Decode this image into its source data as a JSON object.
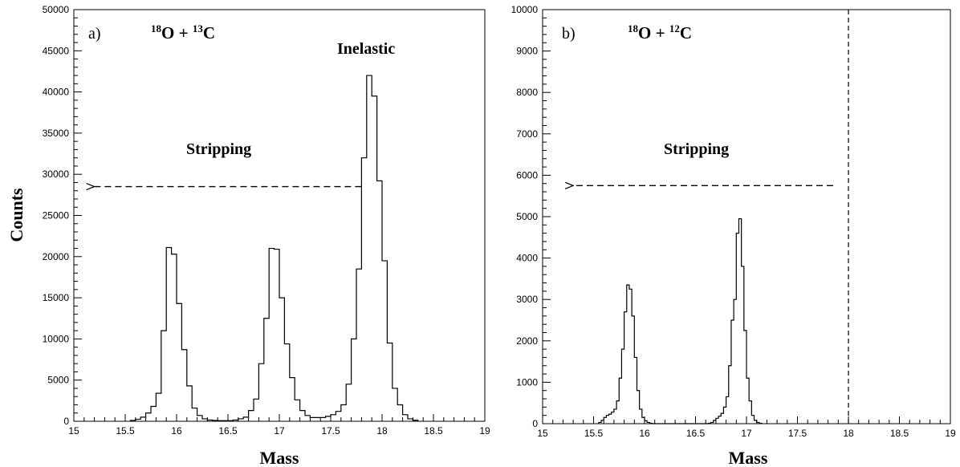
{
  "chart_data": [
    {
      "type": "histogram",
      "panel_label": "a)",
      "reaction": {
        "a_mass": "18",
        "a_sym": "O",
        "plus": " + ",
        "b_mass": "13",
        "b_sym": "C"
      },
      "xlabel": "Mass",
      "ylabel": "Counts",
      "xlim": [
        15,
        19
      ],
      "ylim": [
        0,
        50000
      ],
      "xticks": [
        15,
        15.5,
        16,
        16.5,
        17,
        17.5,
        18,
        18.5,
        19
      ],
      "yticks": [
        0,
        5000,
        10000,
        15000,
        20000,
        25000,
        30000,
        35000,
        40000,
        45000,
        50000
      ],
      "annotations": {
        "stripping": "Stripping",
        "inelastic": "Inelastic"
      },
      "arrow": {
        "from_x": 17.8,
        "to_x": 15.2,
        "y": 28500,
        "style": "dashed"
      },
      "bin_start": 15.55,
      "bin_width": 0.05,
      "counts": [
        100,
        250,
        500,
        1000,
        1800,
        3400,
        11000,
        21100,
        20300,
        14300,
        8700,
        4300,
        1600,
        700,
        300,
        150,
        100,
        80,
        80,
        80,
        150,
        300,
        500,
        1300,
        2700,
        7000,
        12500,
        21000,
        20900,
        15000,
        9400,
        5300,
        2600,
        1300,
        700,
        450,
        450,
        450,
        600,
        800,
        1200,
        2000,
        4500,
        10000,
        18500,
        32000,
        42000,
        39500,
        29200,
        19500,
        9500,
        4000,
        2000,
        800,
        300,
        120
      ]
    },
    {
      "type": "histogram",
      "panel_label": "b)",
      "reaction": {
        "a_mass": "18",
        "a_sym": "O",
        "plus": " + ",
        "b_mass": "12",
        "b_sym": "C"
      },
      "xlabel": "Mass",
      "ylabel": "",
      "xlim": [
        15,
        19
      ],
      "ylim": [
        0,
        10000
      ],
      "xticks": [
        15,
        15.5,
        16,
        16.5,
        17,
        17.5,
        18,
        18.5,
        19
      ],
      "yticks": [
        0,
        1000,
        2000,
        3000,
        4000,
        5000,
        6000,
        7000,
        8000,
        9000,
        10000
      ],
      "annotations": {
        "stripping": "Stripping"
      },
      "arrow": {
        "from_x": 17.85,
        "to_x": 15.3,
        "y": 5750,
        "style": "dashed"
      },
      "vline": {
        "x": 18,
        "style": "dashed"
      },
      "bin_start": 15.55,
      "bin_width": 0.025,
      "counts": [
        30,
        80,
        150,
        200,
        230,
        280,
        350,
        550,
        1100,
        1800,
        2700,
        3350,
        3250,
        2600,
        1600,
        800,
        350,
        150,
        70,
        30,
        10,
        0,
        0,
        0,
        0,
        0,
        0,
        0,
        0,
        0,
        0,
        0,
        0,
        0,
        0,
        0,
        0,
        0,
        0,
        0,
        0,
        0,
        0,
        10,
        30,
        80,
        130,
        180,
        250,
        400,
        650,
        1400,
        2500,
        3000,
        4600,
        4950,
        3800,
        2250,
        1100,
        550,
        200,
        80,
        30,
        10
      ]
    }
  ]
}
